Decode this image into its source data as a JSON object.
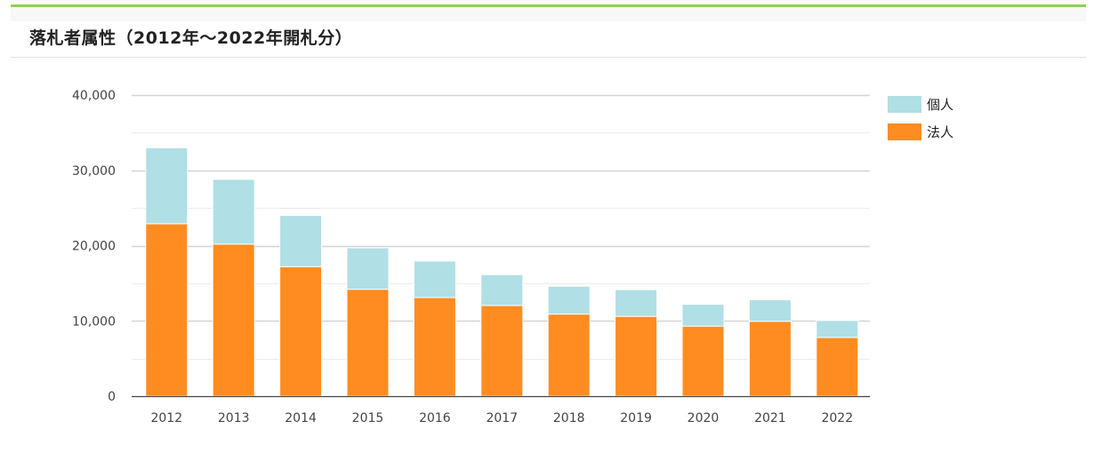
{
  "header": {
    "title": "落札者属性（2012年～2022年開札分）"
  },
  "colors": {
    "accent_bar": "#8fd14f",
    "individual": "#b0dfe5",
    "corporate": "#ff8c21",
    "grid": "#d9d9d9",
    "axis": "#444444"
  },
  "legend": {
    "items": [
      {
        "label": "個人",
        "color": "#b0dfe5"
      },
      {
        "label": "法人",
        "color": "#ff8c21"
      }
    ]
  },
  "chart_data": {
    "type": "bar",
    "stacked": true,
    "title": "落札者属性（2012年～2022年開札分）",
    "xlabel": "",
    "ylabel": "",
    "ylim": [
      0,
      40000
    ],
    "yticks": [
      "0",
      "10,000",
      "20,000",
      "30,000",
      "40,000"
    ],
    "grid": true,
    "legend_position": "right-top",
    "categories": [
      "2012",
      "2013",
      "2014",
      "2015",
      "2016",
      "2017",
      "2018",
      "2019",
      "2020",
      "2021",
      "2022"
    ],
    "series": [
      {
        "name": "法人",
        "color": "#ff8c21",
        "values": [
          22900,
          20200,
          17200,
          14200,
          13100,
          12050,
          10900,
          10600,
          9300,
          9950,
          7800
        ]
      },
      {
        "name": "個人",
        "color": "#b0dfe5",
        "values": [
          10100,
          8600,
          6800,
          5500,
          4850,
          4100,
          3700,
          3550,
          2900,
          2850,
          2250
        ]
      }
    ]
  }
}
